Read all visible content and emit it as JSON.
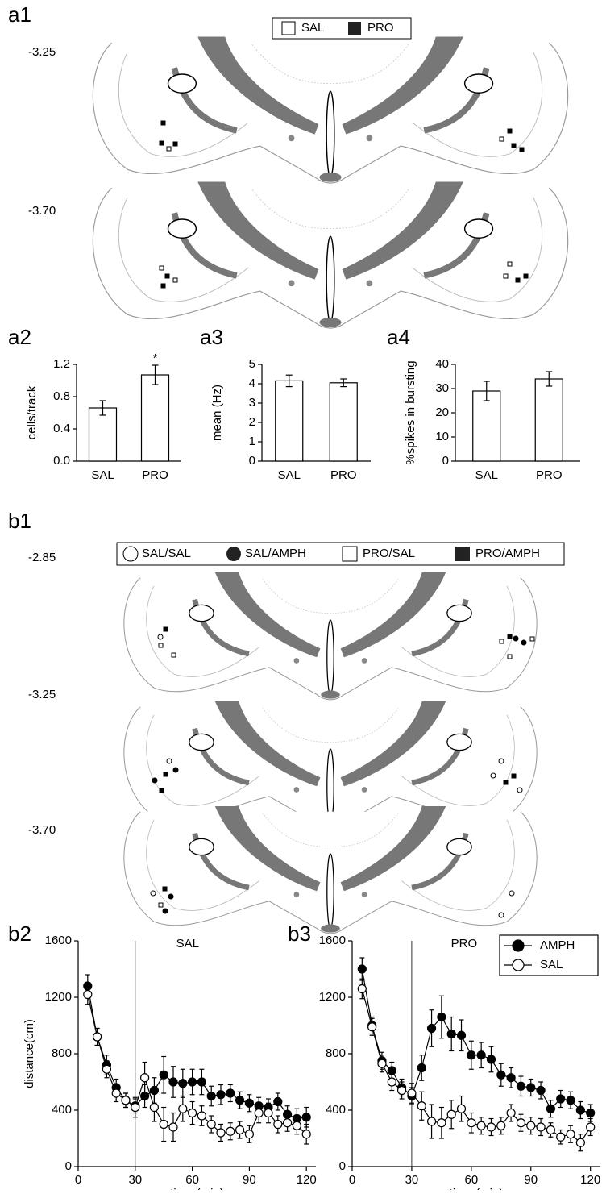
{
  "panels": {
    "a1": {
      "label": "a1",
      "legend": [
        "SAL",
        "PRO"
      ],
      "levels": [
        "-3.25",
        "-3.70"
      ]
    },
    "a2": {
      "label": "a2"
    },
    "a3": {
      "label": "a3"
    },
    "a4": {
      "label": "a4"
    },
    "b1": {
      "label": "b1",
      "legend": [
        "SAL/SAL",
        "SAL/AMPH",
        "PRO/SAL",
        "PRO/AMPH"
      ],
      "levels": [
        "-2.85",
        "-3.25",
        "-3.70"
      ]
    },
    "b2": {
      "label": "b2"
    },
    "b3": {
      "label": "b3"
    }
  },
  "chart_data": [
    {
      "type": "bar",
      "ylabel": "cells/track",
      "categories": [
        "SAL",
        "PRO"
      ],
      "values": [
        0.66,
        1.07
      ],
      "errors": [
        0.09,
        0.12
      ],
      "annotations": [
        null,
        "*"
      ],
      "ylim": [
        0,
        1.2
      ],
      "yticks": [
        {
          "value": 0,
          "label": "0.0"
        },
        0.4,
        0.8,
        1.2
      ],
      "color": "#ffffff"
    },
    {
      "type": "bar",
      "ylabel": "mean (Hz)",
      "categories": [
        "SAL",
        "PRO"
      ],
      "values": [
        4.15,
        4.05
      ],
      "errors": [
        0.3,
        0.2
      ],
      "ylim": [
        0,
        5
      ],
      "yticks": [
        0,
        1,
        2,
        3,
        4,
        5
      ],
      "color": "#ffffff"
    },
    {
      "type": "bar",
      "ylabel": "%spikes in bursting",
      "categories": [
        "SAL",
        "PRO"
      ],
      "values": [
        29,
        34
      ],
      "errors": [
        4,
        3
      ],
      "ylim": [
        0,
        40
      ],
      "yticks": [
        0,
        10,
        20,
        30,
        40
      ],
      "color": "#ffffff"
    },
    {
      "type": "line",
      "title": "SAL",
      "xlabel": "time (min)",
      "ylabel": "distance(cm)",
      "vline": 30,
      "legend": false,
      "x": [
        5,
        10,
        15,
        20,
        25,
        30,
        35,
        40,
        45,
        50,
        55,
        60,
        65,
        70,
        75,
        80,
        85,
        90,
        95,
        100,
        105,
        110,
        115,
        120
      ],
      "series": [
        {
          "name": "AMPH",
          "color": "#000000",
          "values": [
            1280,
            920,
            720,
            560,
            470,
            430,
            500,
            540,
            650,
            600,
            590,
            600,
            600,
            500,
            510,
            520,
            470,
            450,
            430,
            420,
            460,
            370,
            340,
            350
          ],
          "errors": [
            80,
            60,
            70,
            60,
            50,
            50,
            80,
            90,
            130,
            110,
            100,
            90,
            90,
            70,
            70,
            60,
            60,
            60,
            60,
            60,
            60,
            60,
            70,
            70
          ]
        },
        {
          "name": "SAL",
          "color": "#ffffff",
          "values": [
            1220,
            920,
            690,
            520,
            470,
            420,
            630,
            420,
            300,
            280,
            410,
            380,
            360,
            300,
            240,
            250,
            260,
            230,
            380,
            380,
            300,
            310,
            290,
            230
          ],
          "errors": [
            70,
            60,
            60,
            60,
            50,
            70,
            110,
            100,
            120,
            100,
            90,
            80,
            70,
            60,
            60,
            60,
            60,
            60,
            70,
            70,
            60,
            60,
            60,
            70
          ]
        }
      ],
      "xlim": [
        0,
        125
      ],
      "xticks": [
        0,
        30,
        60,
        90,
        120
      ],
      "ylim": [
        0,
        1600
      ],
      "yticks": [
        0,
        400,
        800,
        1200,
        1600
      ]
    },
    {
      "type": "line",
      "title": "PRO",
      "xlabel": "time (min)",
      "vline": 30,
      "legend": "upper right",
      "x": [
        5,
        10,
        15,
        20,
        25,
        30,
        35,
        40,
        45,
        50,
        55,
        60,
        65,
        70,
        75,
        80,
        85,
        90,
        95,
        100,
        105,
        110,
        115,
        120
      ],
      "series": [
        {
          "name": "AMPH",
          "color": "#000000",
          "values": [
            1400,
            1000,
            750,
            680,
            560,
            500,
            700,
            980,
            1060,
            940,
            930,
            790,
            790,
            760,
            650,
            630,
            570,
            560,
            540,
            410,
            480,
            470,
            400,
            380
          ],
          "errors": [
            80,
            60,
            60,
            60,
            60,
            60,
            90,
            130,
            150,
            120,
            110,
            100,
            90,
            90,
            80,
            70,
            70,
            60,
            60,
            60,
            60,
            60,
            60,
            60
          ]
        },
        {
          "name": "SAL",
          "color": "#ffffff",
          "values": [
            1260,
            990,
            730,
            600,
            540,
            520,
            430,
            320,
            310,
            370,
            410,
            310,
            290,
            280,
            290,
            380,
            310,
            290,
            280,
            260,
            210,
            230,
            170,
            280
          ],
          "errors": [
            70,
            60,
            60,
            60,
            60,
            70,
            100,
            120,
            110,
            100,
            90,
            70,
            60,
            60,
            60,
            60,
            60,
            60,
            60,
            50,
            50,
            60,
            60,
            60
          ]
        }
      ],
      "xlim": [
        0,
        125
      ],
      "xticks": [
        0,
        30,
        60,
        90,
        120
      ],
      "ylim": [
        0,
        1600
      ],
      "yticks": [
        0,
        400,
        800,
        1200,
        1600
      ]
    }
  ]
}
